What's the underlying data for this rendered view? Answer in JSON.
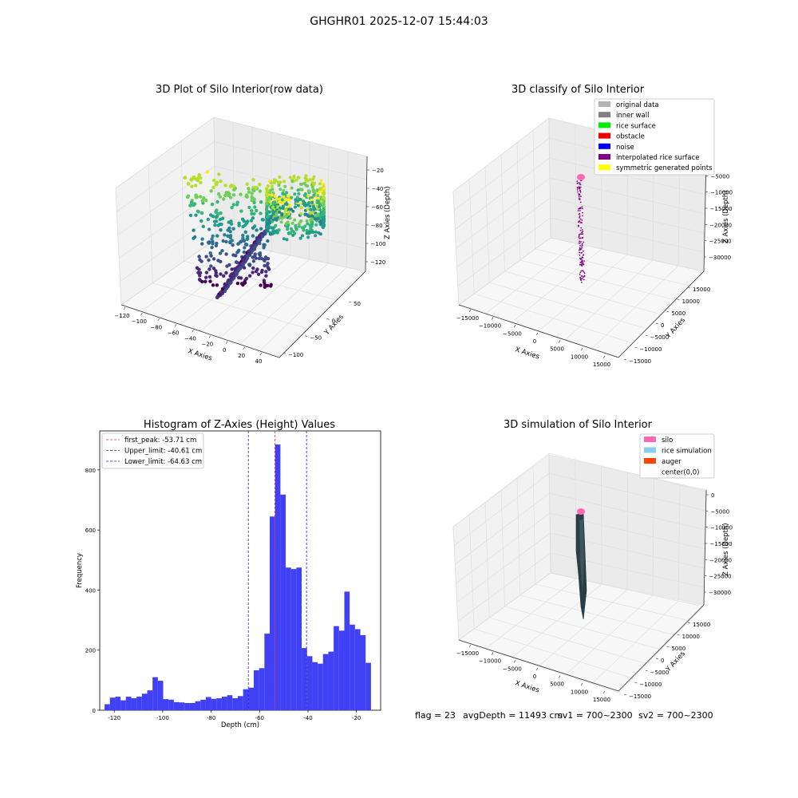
{
  "figure_title": "GHGHR01 2025-12-07 15:44:03",
  "colors": {
    "hist_bar": "#4040f5",
    "peak_line": "#e03030",
    "limit_line": "#2020d0",
    "pane": "#f2f2f2",
    "grid": "#d6d6d6"
  },
  "panels": {
    "raw": {
      "title": "3D Plot of Silo Interior(row data)",
      "xlabel": "X Axies",
      "ylabel": "Y Axies",
      "zlabel": "Z Axies (Depth)",
      "xticks": [
        "−120",
        "−100",
        "−80",
        "−60",
        "−40",
        "−20",
        "0",
        "20",
        "40"
      ],
      "yticks": [
        "50",
        "0",
        "−50",
        "−100"
      ],
      "zticks": [
        "−20",
        "−40",
        "−60",
        "−80",
        "−100",
        "−120"
      ]
    },
    "classify": {
      "title": "3D classify of Silo Interior",
      "xlabel": "X Axies",
      "ylabel": "Y Axies",
      "zlabel": "Z Axies (Depth)",
      "xticks": [
        "−15000",
        "−10000",
        "−5000",
        "0",
        "5000",
        "10000",
        "15000"
      ],
      "yticks": [
        "15000",
        "10000",
        "5000",
        "0",
        "−5000",
        "−10000",
        "−15000"
      ],
      "zticks": [
        "0",
        "−5000",
        "−10000",
        "−15000",
        "−20000",
        "−25000",
        "−30000"
      ],
      "legend": [
        {
          "label": "original data",
          "color": "#b3b3b3"
        },
        {
          "label": "inner wall",
          "color": "#808080"
        },
        {
          "label": "rice surface",
          "color": "#00ee00"
        },
        {
          "label": "obstacle",
          "color": "#ee0000"
        },
        {
          "label": "noise",
          "color": "#0000ee"
        },
        {
          "label": "interpolated rice surface",
          "color": "#800080"
        },
        {
          "label": "symmetric generated points",
          "color": "#ffff00"
        }
      ]
    },
    "simulation": {
      "title": "3D simulation of Silo Interior",
      "xlabel": "X Axies",
      "ylabel": "Y Axies",
      "zlabel": "Z Axies (Depth)",
      "xticks": [
        "−15000",
        "−10000",
        "−5000",
        "0",
        "5000",
        "10000",
        "15000"
      ],
      "yticks": [
        "15000",
        "10000",
        "5000",
        "0",
        "−5000",
        "−10000",
        "−15000"
      ],
      "zticks": [
        "0",
        "−5000",
        "−10000",
        "−15000",
        "−20000",
        "−25000",
        "−30000"
      ],
      "legend": [
        {
          "label": "silo",
          "color": "#ff69b4"
        },
        {
          "label": "rice simulation",
          "color": "#87ceeb"
        },
        {
          "label": "auger",
          "color": "#ff4500"
        },
        {
          "label": "center(0,0)",
          "color": "#ffffff"
        }
      ]
    }
  },
  "status": {
    "flag": "flag = 23",
    "avg_depth": "avgDepth = 11493 cm",
    "sv1": "sv1 = 700~2300",
    "sv2": "sv2 = 700~2300"
  },
  "chart_data": {
    "type": "bar",
    "title": "Histogram of Z-Axies (Height) Values",
    "xlabel": "Depth (cm)",
    "ylabel": "Frequency",
    "xlim": [
      -126,
      -10
    ],
    "ylim": [
      0,
      930
    ],
    "xticks": [
      -120,
      -100,
      -80,
      -60,
      -40,
      -20
    ],
    "yticks": [
      0,
      200,
      400,
      600,
      800
    ],
    "bin_start": -124,
    "bin_width": 2.2,
    "values": [
      20,
      42,
      45,
      33,
      45,
      40,
      45,
      55,
      66,
      110,
      98,
      37,
      35,
      27,
      26,
      24,
      24,
      30,
      35,
      44,
      38,
      40,
      45,
      50,
      40,
      47,
      70,
      75,
      133,
      140,
      255,
      645,
      885,
      718,
      475,
      470,
      475,
      207,
      180,
      160,
      155,
      187,
      195,
      280,
      265,
      395,
      285,
      270,
      250,
      158
    ],
    "vlines": [
      {
        "label": "first_peak: -53.71 cm",
        "value": -53.71,
        "color": "#e03030"
      },
      {
        "label": "Upper_limit: -40.61 cm",
        "value": -40.61,
        "color": "#2020d0"
      },
      {
        "label": "Lower_limit: -64.63 cm",
        "value": -64.63,
        "color": "#2020d0"
      }
    ],
    "legend_position": "top-left"
  }
}
